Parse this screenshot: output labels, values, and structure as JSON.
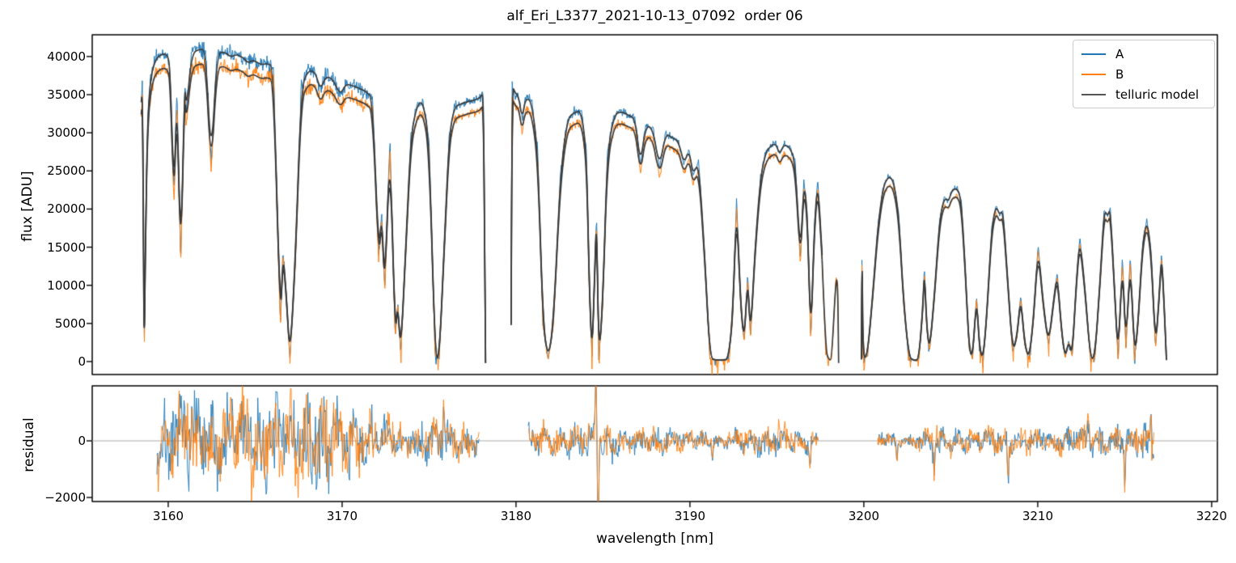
{
  "title": "alf_Eri_L3377_2021-10-13_07092  order 06",
  "legend": {
    "entries": [
      {
        "label": "A",
        "color": "#1f77b4"
      },
      {
        "label": "B",
        "color": "#ff7f0e"
      },
      {
        "label": "telluric model",
        "color": "#555555"
      }
    ]
  },
  "colors": {
    "series_a": "#1f77b4",
    "series_b": "#ff7f0e",
    "telluric_model": "#3a3a3a",
    "zero_line": "#aaaaaa",
    "spine": "#000000"
  },
  "chart_data": {
    "type": "line",
    "title": "alf_Eri_L3377_2021-10-13_07092  order 06",
    "xlabel": "wavelength [nm]",
    "ylabel_top": "flux [ADU]",
    "ylabel_bottom": "residual",
    "xlim": [
      3155.63,
      3220.33
    ],
    "top_ylim": [
      -1700,
      42850
    ],
    "bottom_ylim": [
      -2143,
      1943
    ],
    "xticks": [
      {
        "v": 3160,
        "label": "3160"
      },
      {
        "v": 3170,
        "label": "3170"
      },
      {
        "v": 3180,
        "label": "3180"
      },
      {
        "v": 3190,
        "label": "3190"
      },
      {
        "v": 3200,
        "label": "3200"
      },
      {
        "v": 3210,
        "label": "3210"
      },
      {
        "v": 3220,
        "label": "3220"
      }
    ],
    "top_yticks": [
      {
        "v": 0,
        "label": "0"
      },
      {
        "v": 5000,
        "label": "5000"
      },
      {
        "v": 10000,
        "label": "10000"
      },
      {
        "v": 15000,
        "label": "15000"
      },
      {
        "v": 20000,
        "label": "20000"
      },
      {
        "v": 25000,
        "label": "25000"
      },
      {
        "v": 30000,
        "label": "30000"
      },
      {
        "v": 35000,
        "label": "35000"
      },
      {
        "v": 40000,
        "label": "40000"
      }
    ],
    "bottom_yticks": [
      {
        "v": -2000,
        "label": "−2000"
      },
      {
        "v": 0,
        "label": "0"
      }
    ],
    "series": [
      {
        "name": "A",
        "color": "#1f77b4",
        "style": "noisy"
      },
      {
        "name": "B",
        "color": "#ff7f0e",
        "style": "noisy",
        "scale_vs_a": 0.953
      },
      {
        "name": "telluric model",
        "color": "#3a3a3a",
        "style": "smooth",
        "note": "plotted twice, scaled to A and to B"
      }
    ],
    "data_segments": [
      {
        "x0": 3158.45,
        "x1": 3178.25,
        "a": true,
        "b": true
      },
      {
        "x0": 3179.72,
        "x1": 3197.6,
        "a": true,
        "b": true
      },
      {
        "x0": 3197.6,
        "x1": 3198.55,
        "a": false,
        "b": true
      },
      {
        "x0": 3199.86,
        "x1": 3217.4,
        "a": true,
        "b": true
      }
    ],
    "telluric_model_points": [
      [
        3158.45,
        34000
      ],
      [
        3158.52,
        37000
      ],
      [
        3158.58,
        15000
      ],
      [
        3158.62,
        800
      ],
      [
        3158.7,
        18000
      ],
      [
        3158.82,
        32000
      ],
      [
        3159.0,
        37500
      ],
      [
        3159.3,
        39800
      ],
      [
        3159.7,
        40400
      ],
      [
        3159.95,
        40200
      ],
      [
        3160.1,
        38800
      ],
      [
        3160.33,
        21800
      ],
      [
        3160.5,
        35500
      ],
      [
        3160.72,
        13200
      ],
      [
        3160.95,
        37000
      ],
      [
        3161.05,
        33000
      ],
      [
        3161.35,
        40400
      ],
      [
        3161.8,
        41000
      ],
      [
        3162.15,
        40800
      ],
      [
        3162.47,
        26000
      ],
      [
        3162.8,
        40300
      ],
      [
        3163.2,
        40700
      ],
      [
        3163.6,
        39900
      ],
      [
        3163.9,
        40300
      ],
      [
        3164.3,
        39900
      ],
      [
        3164.6,
        39100
      ],
      [
        3164.9,
        39600
      ],
      [
        3165.3,
        38900
      ],
      [
        3165.7,
        39100
      ],
      [
        3166.05,
        38700
      ],
      [
        3166.45,
        4800
      ],
      [
        3166.6,
        14500
      ],
      [
        3166.8,
        8500
      ],
      [
        3167.0,
        300
      ],
      [
        3167.3,
        13000
      ],
      [
        3167.65,
        36000
      ],
      [
        3168.05,
        38200
      ],
      [
        3168.45,
        38000
      ],
      [
        3168.75,
        35600
      ],
      [
        3169.05,
        37400
      ],
      [
        3169.45,
        37100
      ],
      [
        3169.9,
        34900
      ],
      [
        3170.2,
        36400
      ],
      [
        3170.6,
        36200
      ],
      [
        3171.0,
        35800
      ],
      [
        3171.4,
        35400
      ],
      [
        3171.75,
        34500
      ],
      [
        3172.1,
        14000
      ],
      [
        3172.28,
        19500
      ],
      [
        3172.45,
        9500
      ],
      [
        3172.75,
        29500
      ],
      [
        3173.05,
        3400
      ],
      [
        3173.2,
        7800
      ],
      [
        3173.37,
        1100
      ],
      [
        3173.65,
        14500
      ],
      [
        3173.95,
        29500
      ],
      [
        3174.3,
        33600
      ],
      [
        3174.65,
        34200
      ],
      [
        3175.0,
        29000
      ],
      [
        3175.35,
        700
      ],
      [
        3175.58,
        400
      ],
      [
        3175.85,
        14000
      ],
      [
        3176.15,
        29500
      ],
      [
        3176.45,
        33400
      ],
      [
        3176.85,
        33800
      ],
      [
        3177.25,
        34100
      ],
      [
        3177.65,
        34300
      ],
      [
        3177.95,
        34600
      ],
      [
        3178.12,
        35400
      ],
      [
        3178.2,
        15000
      ],
      [
        3178.25,
        -200
      ],
      [
        3179.72,
        5000
      ],
      [
        3179.76,
        36300
      ],
      [
        3179.95,
        35200
      ],
      [
        3180.15,
        34800
      ],
      [
        3180.35,
        31800
      ],
      [
        3180.55,
        34600
      ],
      [
        3180.9,
        34100
      ],
      [
        3181.25,
        27500
      ],
      [
        3181.55,
        5000
      ],
      [
        3181.85,
        300
      ],
      [
        3182.15,
        5000
      ],
      [
        3182.55,
        24500
      ],
      [
        3182.95,
        31800
      ],
      [
        3183.35,
        32700
      ],
      [
        3183.75,
        32900
      ],
      [
        3184.05,
        27500
      ],
      [
        3184.22,
        9500
      ],
      [
        3184.37,
        900
      ],
      [
        3184.52,
        11500
      ],
      [
        3184.63,
        19500
      ],
      [
        3184.76,
        400
      ],
      [
        3184.98,
        7500
      ],
      [
        3185.25,
        27500
      ],
      [
        3185.65,
        32400
      ],
      [
        3186.05,
        32800
      ],
      [
        3186.45,
        32300
      ],
      [
        3186.85,
        31900
      ],
      [
        3187.15,
        25800
      ],
      [
        3187.45,
        30900
      ],
      [
        3187.85,
        30700
      ],
      [
        3188.25,
        25400
      ],
      [
        3188.6,
        29900
      ],
      [
        3188.95,
        29400
      ],
      [
        3189.35,
        28900
      ],
      [
        3189.65,
        25900
      ],
      [
        3189.95,
        27800
      ],
      [
        3190.18,
        24400
      ],
      [
        3190.5,
        26300
      ],
      [
        3190.85,
        14000
      ],
      [
        3191.15,
        400
      ],
      [
        3191.5,
        200
      ],
      [
        3191.9,
        200
      ],
      [
        3192.2,
        300
      ],
      [
        3192.45,
        5500
      ],
      [
        3192.68,
        21200
      ],
      [
        3192.92,
        7500
      ],
      [
        3193.12,
        2600
      ],
      [
        3193.32,
        11500
      ],
      [
        3193.48,
        3200
      ],
      [
        3193.75,
        15000
      ],
      [
        3194.05,
        24000
      ],
      [
        3194.35,
        27400
      ],
      [
        3194.65,
        28300
      ],
      [
        3194.95,
        28600
      ],
      [
        3195.15,
        27100
      ],
      [
        3195.4,
        28500
      ],
      [
        3195.75,
        28100
      ],
      [
        3196.05,
        26200
      ],
      [
        3196.35,
        13500
      ],
      [
        3196.55,
        23800
      ],
      [
        3196.75,
        19500
      ],
      [
        3196.95,
        2800
      ],
      [
        3197.15,
        17500
      ],
      [
        3197.35,
        24000
      ],
      [
        3197.6,
        14000
      ],
      [
        3197.8,
        1500
      ],
      [
        3198.0,
        200
      ],
      [
        3198.15,
        300
      ],
      [
        3198.4,
        11800
      ],
      [
        3198.5,
        10500
      ],
      [
        3198.55,
        -200
      ],
      [
        3199.86,
        300
      ],
      [
        3199.9,
        17500
      ],
      [
        3199.94,
        500
      ],
      [
        3200.2,
        700
      ],
      [
        3200.5,
        8500
      ],
      [
        3200.8,
        17500
      ],
      [
        3201.1,
        22800
      ],
      [
        3201.4,
        24300
      ],
      [
        3201.7,
        23800
      ],
      [
        3202.0,
        19500
      ],
      [
        3202.3,
        7500
      ],
      [
        3202.6,
        500
      ],
      [
        3202.9,
        150
      ],
      [
        3203.15,
        200
      ],
      [
        3203.38,
        6500
      ],
      [
        3203.48,
        12300
      ],
      [
        3203.62,
        4500
      ],
      [
        3203.78,
        1500
      ],
      [
        3204.05,
        8500
      ],
      [
        3204.35,
        18500
      ],
      [
        3204.62,
        21500
      ],
      [
        3204.88,
        21000
      ],
      [
        3205.05,
        22400
      ],
      [
        3205.35,
        22800
      ],
      [
        3205.6,
        21300
      ],
      [
        3205.85,
        11500
      ],
      [
        3206.05,
        1800
      ],
      [
        3206.25,
        400
      ],
      [
        3206.48,
        8800
      ],
      [
        3206.65,
        1800
      ],
      [
        3206.85,
        300
      ],
      [
        3207.05,
        5500
      ],
      [
        3207.35,
        17500
      ],
      [
        3207.6,
        20500
      ],
      [
        3207.8,
        19200
      ],
      [
        3208.0,
        19900
      ],
      [
        3208.25,
        11500
      ],
      [
        3208.55,
        1300
      ],
      [
        3208.8,
        3200
      ],
      [
        3209.02,
        8700
      ],
      [
        3209.25,
        2300
      ],
      [
        3209.5,
        300
      ],
      [
        3209.75,
        5500
      ],
      [
        3210.02,
        15300
      ],
      [
        3210.32,
        7500
      ],
      [
        3210.62,
        2200
      ],
      [
        3210.92,
        8200
      ],
      [
        3211.12,
        11600
      ],
      [
        3211.38,
        3800
      ],
      [
        3211.58,
        500
      ],
      [
        3211.78,
        2800
      ],
      [
        3211.98,
        700
      ],
      [
        3212.22,
        10500
      ],
      [
        3212.42,
        16300
      ],
      [
        3212.72,
        9500
      ],
      [
        3213.02,
        500
      ],
      [
        3213.28,
        400
      ],
      [
        3213.58,
        10500
      ],
      [
        3213.82,
        20000
      ],
      [
        3214.02,
        19000
      ],
      [
        3214.17,
        20200
      ],
      [
        3214.42,
        9500
      ],
      [
        3214.62,
        400
      ],
      [
        3214.87,
        13700
      ],
      [
        3215.07,
        1800
      ],
      [
        3215.32,
        13900
      ],
      [
        3215.57,
        500
      ],
      [
        3215.77,
        5200
      ],
      [
        3216.02,
        15200
      ],
      [
        3216.27,
        18700
      ],
      [
        3216.52,
        14500
      ],
      [
        3216.77,
        1800
      ],
      [
        3216.97,
        8200
      ],
      [
        3217.12,
        14300
      ],
      [
        3217.27,
        7500
      ],
      [
        3217.4,
        200
      ]
    ],
    "obs_noise_amp_profile": [
      [
        3158.5,
        520
      ],
      [
        3163,
        560
      ],
      [
        3167,
        560
      ],
      [
        3170,
        520
      ],
      [
        3172.5,
        400
      ],
      [
        3175,
        330
      ],
      [
        3178,
        330
      ],
      [
        3180,
        380
      ],
      [
        3184,
        350
      ],
      [
        3187,
        330
      ],
      [
        3190,
        240
      ],
      [
        3193,
        210
      ],
      [
        3195,
        320
      ],
      [
        3198,
        160
      ],
      [
        3201,
        240
      ],
      [
        3205,
        230
      ],
      [
        3208,
        160
      ],
      [
        3211,
        140
      ],
      [
        3214,
        160
      ],
      [
        3217.4,
        190
      ]
    ],
    "residual_segments": [
      [
        3159.35,
        3177.9
      ],
      [
        3180.7,
        3197.4
      ],
      [
        3200.8,
        3216.7
      ]
    ],
    "residual_amp_profile": [
      [
        3159.4,
        800
      ],
      [
        3162,
        850
      ],
      [
        3166,
        900
      ],
      [
        3169,
        850
      ],
      [
        3171,
        700
      ],
      [
        3172.6,
        400
      ],
      [
        3174,
        300
      ],
      [
        3175.6,
        550
      ],
      [
        3176.4,
        380
      ],
      [
        3177.9,
        260
      ],
      [
        3180.7,
        350
      ],
      [
        3182,
        300
      ],
      [
        3184,
        380
      ],
      [
        3186,
        300
      ],
      [
        3188,
        280
      ],
      [
        3190,
        210
      ],
      [
        3191.6,
        110
      ],
      [
        3193,
        260
      ],
      [
        3195,
        310
      ],
      [
        3196.6,
        260
      ],
      [
        3197.4,
        180
      ],
      [
        3200.8,
        190
      ],
      [
        3202.6,
        110
      ],
      [
        3204,
        300
      ],
      [
        3206,
        250
      ],
      [
        3208,
        230
      ],
      [
        3210,
        260
      ],
      [
        3212,
        280
      ],
      [
        3214,
        260
      ],
      [
        3215.5,
        310
      ],
      [
        3216.7,
        350
      ]
    ],
    "residual_spikes": [
      [
        3175.85,
        1600
      ],
      [
        3184.6,
        2400
      ],
      [
        3184.72,
        -3200
      ],
      [
        3191.3,
        -500
      ],
      [
        3196.9,
        -800
      ],
      [
        3201.9,
        -700
      ],
      [
        3204.05,
        -1400
      ],
      [
        3208.3,
        -1400
      ],
      [
        3212.9,
        800
      ],
      [
        3215.0,
        -1300
      ],
      [
        3216.5,
        900
      ]
    ]
  }
}
